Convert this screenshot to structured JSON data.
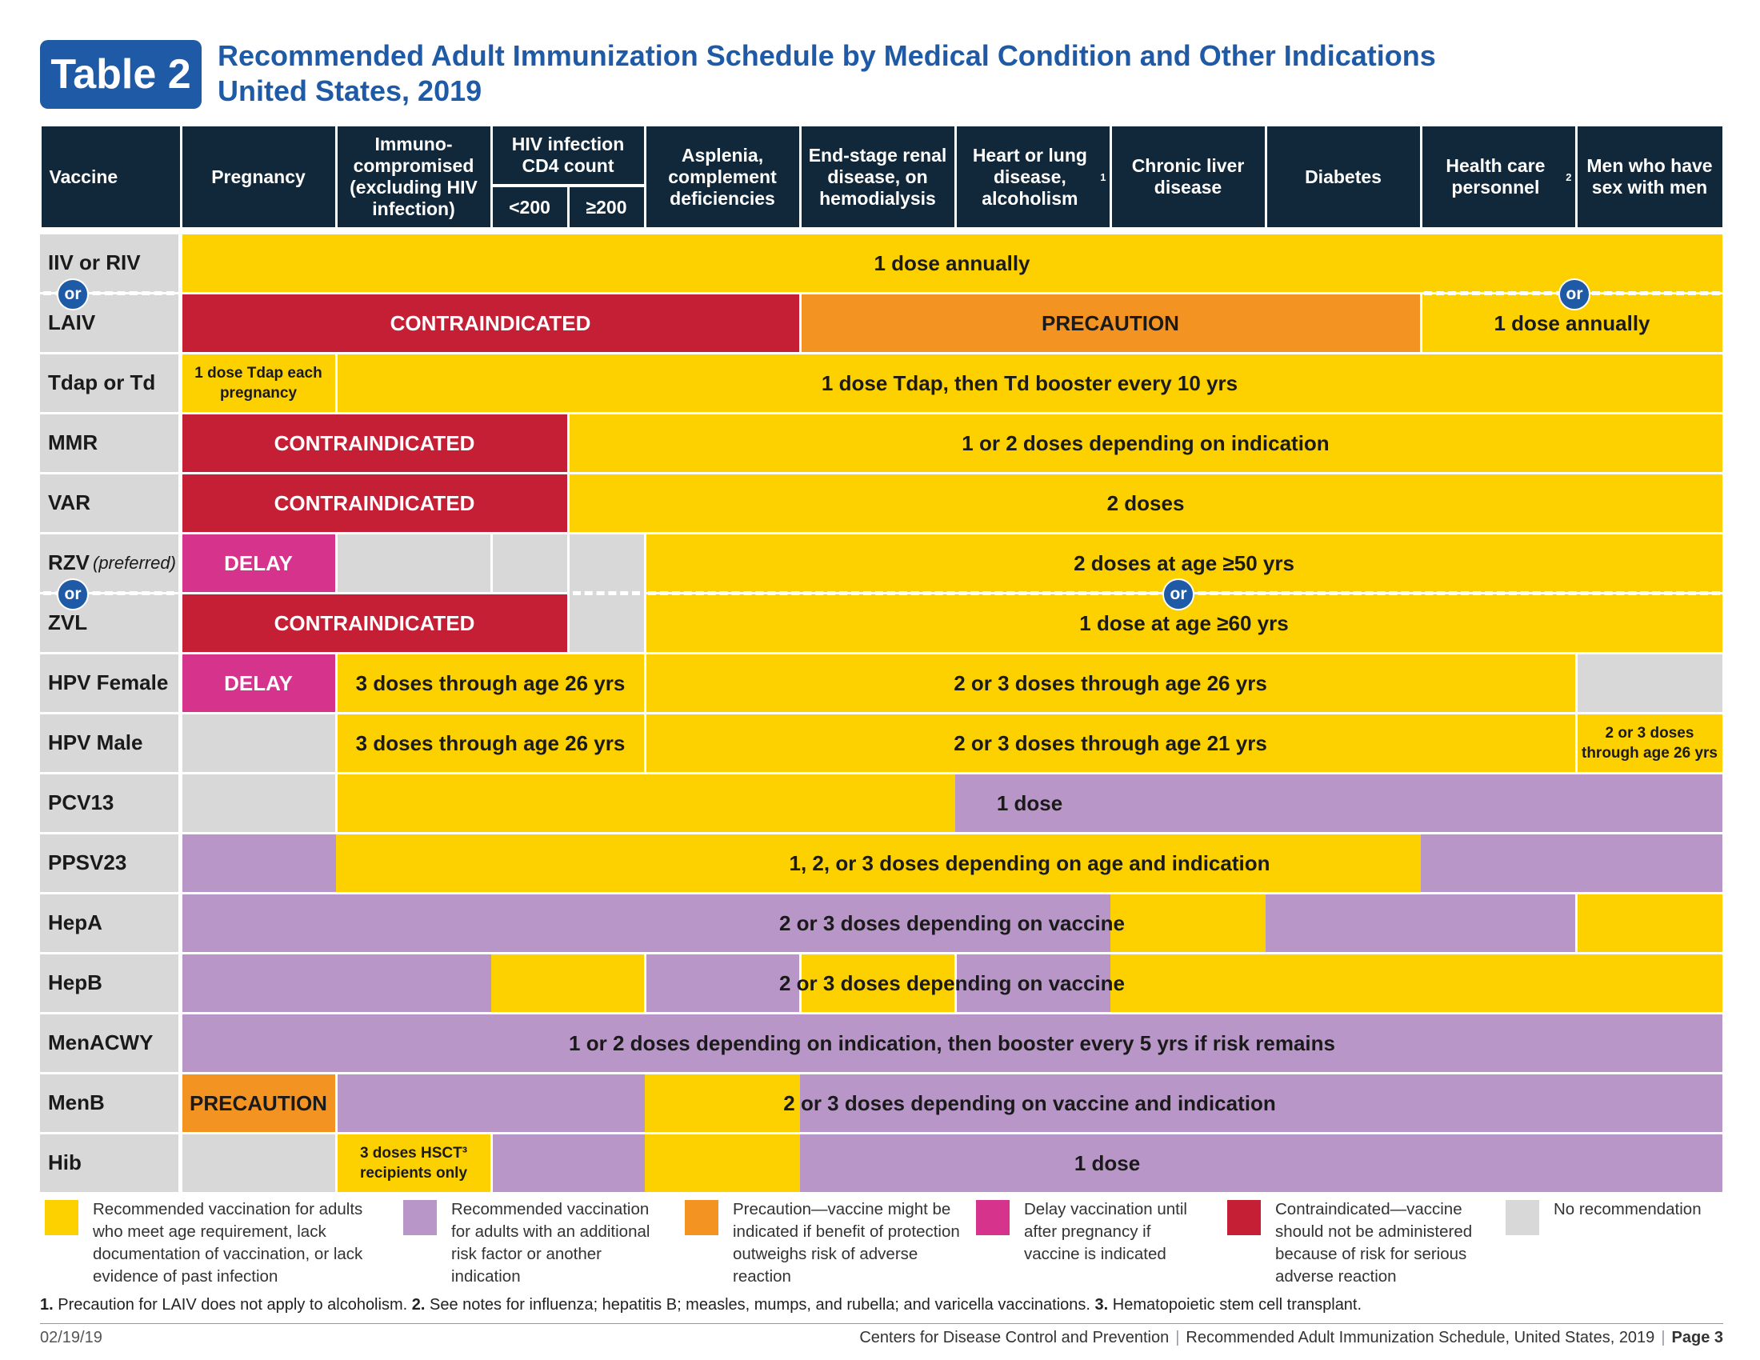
{
  "header": {
    "badge": "Table 2",
    "title_line1": "Recommended Adult Immunization Schedule by Medical Condition and Other Indications",
    "title_line2": "United States, 2019"
  },
  "columns": {
    "vaccine": "Vaccine",
    "pregnancy": "Pregnancy",
    "immuno": "Immuno-compromised (excluding HIV infection)",
    "hiv": "HIV infection CD4 count",
    "hiv_low": "<200",
    "hiv_high": "≥200",
    "asplenia": "Asplenia, complement deficiencies",
    "renal": "End-stage renal disease, on hemodialysis",
    "heart": "Heart or lung disease, alcoholism",
    "heart_sup": "1",
    "liver": "Chronic liver disease",
    "diabetes": "Diabetes",
    "hcp": "Health care personnel",
    "hcp_sup": "2",
    "msm": "Men who have sex with men"
  },
  "rows": {
    "iiv": "IIV or RIV",
    "laiv": "LAIV",
    "tdap": "Tdap or Td",
    "mmr": "MMR",
    "var": "VAR",
    "rzv": "RZV",
    "rzv_note": "(preferred)",
    "zvl": "ZVL",
    "hpvf": "HPV Female",
    "hpvm": "HPV Male",
    "pcv13": "PCV13",
    "ppsv23": "PPSV23",
    "hepa": "HepA",
    "hepb": "HepB",
    "menacwy": "MenACWY",
    "menb": "MenB",
    "hib": "Hib"
  },
  "or_label": "or",
  "cells": {
    "iiv": "1 dose annually",
    "laiv_contra": "CONTRAINDICATED",
    "laiv_precaution": "PRECAUTION",
    "laiv_annual": "1 dose annually",
    "tdap_preg": "1 dose Tdap each pregnancy",
    "tdap_rest": "1 dose Tdap, then Td booster every 10 yrs",
    "mmr_contra": "CONTRAINDICATED",
    "mmr_rest": "1 or 2 doses depending on indication",
    "var_contra": "CONTRAINDICATED",
    "var_rest": "2 doses",
    "rzv_delay": "DELAY",
    "rzv_rest": "2 doses at age ≥50 yrs",
    "zvl_contra": "CONTRAINDICATED",
    "zvl_rest": "1 dose at age ≥60 yrs",
    "hpvf_delay": "DELAY",
    "hpvf_immuno": "3 doses through age 26 yrs",
    "hpvf_rest": "2 or 3 doses through age 26 yrs",
    "hpvm_immuno": "3 doses through age 26 yrs",
    "hpvm_rest": "2 or 3 doses through age 21 yrs",
    "hpvm_msm": "2 or 3 doses through age 26 yrs",
    "pcv13": "1 dose",
    "ppsv23": "1, 2, or 3 doses depending on age and indication",
    "hepa": "2 or 3 doses depending on vaccine",
    "hepb": "2 or 3 doses depending on vaccine",
    "menacwy": "1 or 2 doses depending on indication, then booster every 5 yrs if risk remains",
    "menb_precaution": "PRECAUTION",
    "menb_rest": "2 or 3 doses depending on vaccine and indication",
    "hib_hsct": "3 doses HSCT³ recipients only",
    "hib_rest": "1 dose"
  },
  "legend": [
    {
      "color": "#fdd000",
      "text": "Recommended vaccination for adults who meet age requirement, lack documentation of vaccination, or lack evidence of past infection"
    },
    {
      "color": "#b896c8",
      "text": "Recommended vaccination for adults with an additional risk factor or another indication"
    },
    {
      "color": "#f39321",
      "text": "Precaution—vaccine might be indicated if benefit of protection outweighs risk of adverse reaction"
    },
    {
      "color": "#d6348c",
      "text": "Delay vaccination until after pregnancy if vaccine is indicated"
    },
    {
      "color": "#c41f35",
      "text": "Contraindicated—vaccine should not be administered because of risk for serious adverse reaction"
    },
    {
      "color": "#d8d8d8",
      "text": "No recommendation"
    }
  ],
  "colors": {
    "yellow": "#fdd000",
    "purple": "#b896c8",
    "orange": "#f39321",
    "pink": "#d6348c",
    "red": "#c41f35",
    "gray": "#d8d8d8",
    "header": "#10283a",
    "brand": "#1f5aa6"
  },
  "footnotes": {
    "n1_num": "1.",
    "n1": "Precaution for LAIV does not apply to alcoholism.",
    "n2_num": "2.",
    "n2": "See notes for influenza; hepatitis B; measles, mumps, and rubella; and varicella vaccinations.",
    "n3_num": "3.",
    "n3": "Hematopoietic stem cell transplant."
  },
  "footer": {
    "date": "02/19/19",
    "org": "Centers for Disease Control and Prevention",
    "doc": "Recommended Adult Immunization Schedule, United States, 2019",
    "page": "Page 3"
  }
}
